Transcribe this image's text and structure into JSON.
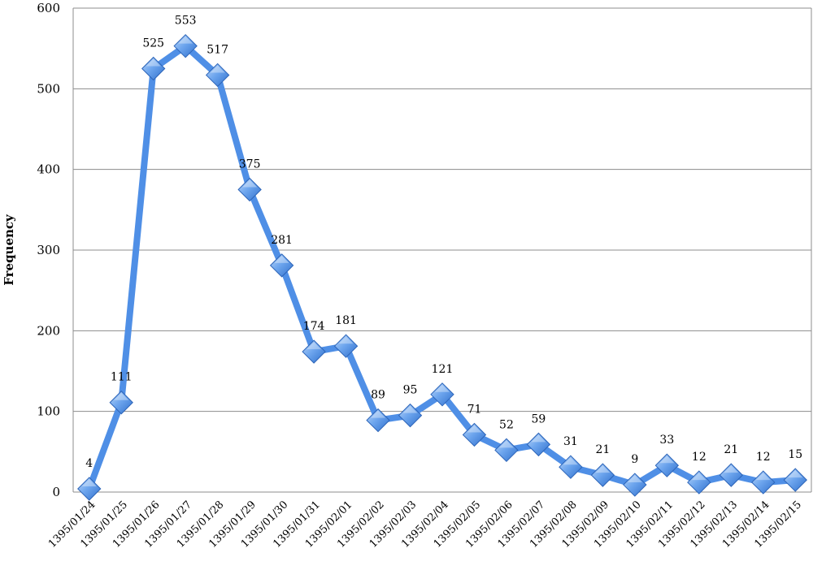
{
  "chart_data": {
    "type": "line",
    "ylabel": "Frequency",
    "xlabel": "",
    "ylim": [
      0,
      600
    ],
    "yticks": [
      0,
      100,
      200,
      300,
      400,
      500,
      600
    ],
    "grid": true,
    "legend": "none",
    "x": [
      "1395/01/24",
      "1395/01/25",
      "1395/01/26",
      "1395/01/27",
      "1395/01/28",
      "1395/01/29",
      "1395/01/30",
      "1395/01/31",
      "1395/02/01",
      "1395/02/02",
      "1395/02/03",
      "1395/02/04",
      "1395/02/05",
      "1395/02/06",
      "1395/02/07",
      "1395/02/08",
      "1395/02/09",
      "1395/02/10",
      "1395/02/11",
      "1395/02/12",
      "1395/02/13",
      "1395/02/14",
      "1395/02/15"
    ],
    "series": [
      {
        "values": [
          4,
          111,
          525,
          553,
          517,
          375,
          281,
          174,
          181,
          89,
          95,
          121,
          71,
          52,
          59,
          31,
          21,
          9,
          33,
          12,
          21,
          12,
          15
        ],
        "color": "#4f8fe6",
        "marker": "diamond"
      }
    ]
  }
}
